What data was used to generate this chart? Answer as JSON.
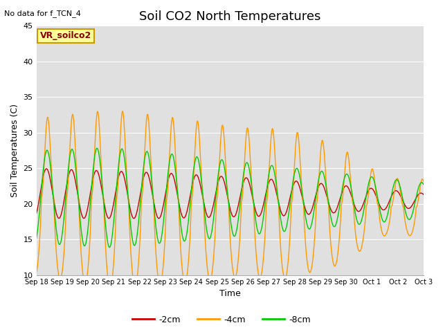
{
  "title": "Soil CO2 North Temperatures",
  "xlabel": "Time",
  "ylabel": "Soil Temperatures (C)",
  "ylim": [
    10,
    45
  ],
  "xlim": [
    0,
    15.5
  ],
  "annotation": "No data for f_TCN_4",
  "legend_label": "VR_soilco2",
  "legend_entries": [
    "-2cm",
    "-4cm",
    "-8cm"
  ],
  "line_colors": [
    "#cc0000",
    "#ff9900",
    "#00cc00"
  ],
  "xtick_labels": [
    "Sep 18",
    "Sep 19",
    "Sep 20",
    "Sep 21",
    "Sep 22",
    "Sep 23",
    "Sep 24",
    "Sep 25",
    "Sep 26",
    "Sep 27",
    "Sep 28",
    "Sep 29",
    "Sep 30",
    "Oct 1",
    "Oct 2",
    "Oct 3"
  ],
  "background_color": "#ffffff",
  "plot_bg_color": "#e0e0e0",
  "grid_color": "#ffffff",
  "title_fontsize": 13,
  "axis_fontsize": 9,
  "tick_fontsize": 8
}
